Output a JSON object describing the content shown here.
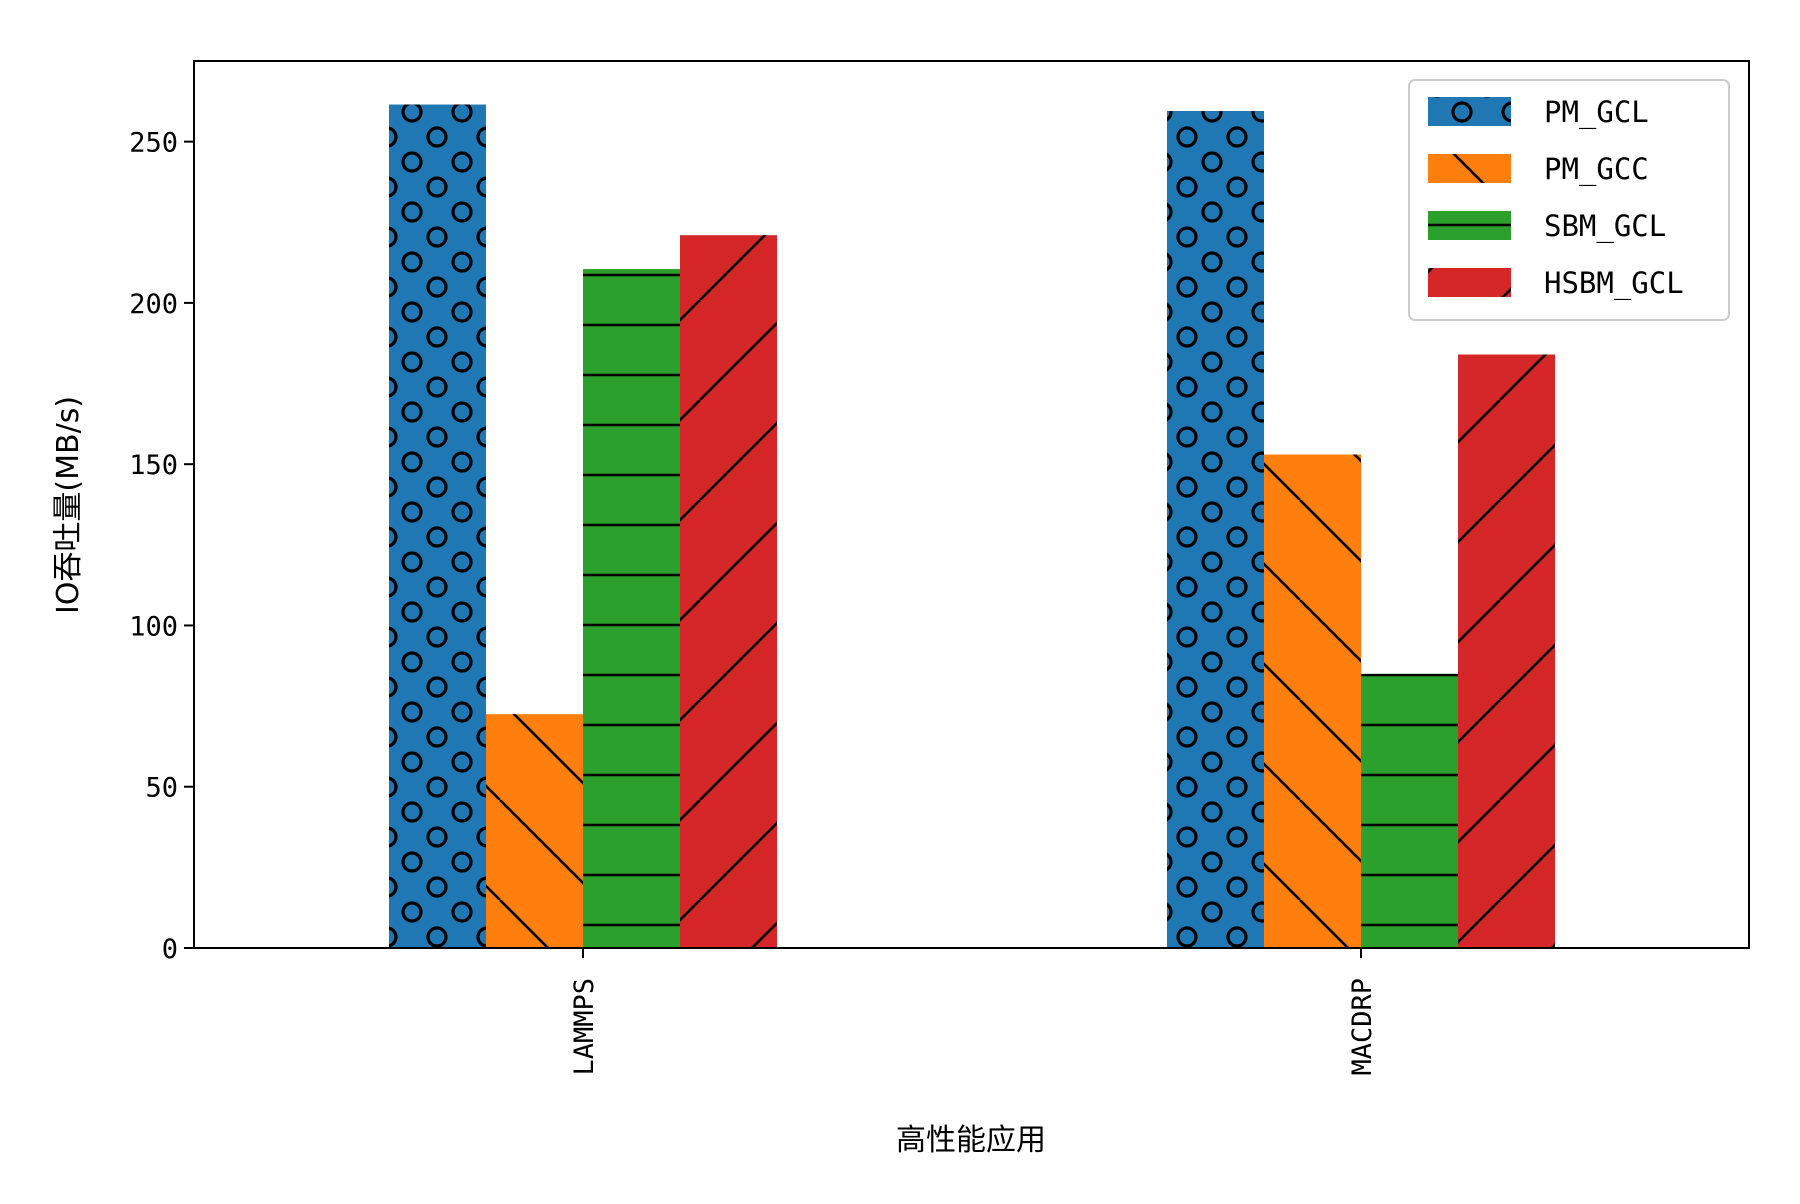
{
  "chart_data": {
    "type": "bar",
    "xlabel": "高性能应用",
    "ylabel": "IO吞吐量(MB/s)",
    "categories": [
      "LAMMPS",
      "MACDRP"
    ],
    "ylim": [
      0,
      275
    ],
    "yticks": [
      0,
      50,
      100,
      150,
      200,
      250
    ],
    "legend_position": "top-right",
    "grid": false,
    "series": [
      {
        "name": "PM_GCL",
        "values": [
          261.5,
          259.5
        ],
        "color": "#1f77b4",
        "hatch": "circles"
      },
      {
        "name": "PM_GCC",
        "values": [
          72.5,
          153
        ],
        "color": "#ff7f0e",
        "hatch": "backslash"
      },
      {
        "name": "SBM_GCL",
        "values": [
          210.5,
          85
        ],
        "color": "#2ca02c",
        "hatch": "horizontal"
      },
      {
        "name": "HSBM_GCL",
        "values": [
          221,
          184
        ],
        "color": "#d62728",
        "hatch": "slash"
      }
    ]
  }
}
